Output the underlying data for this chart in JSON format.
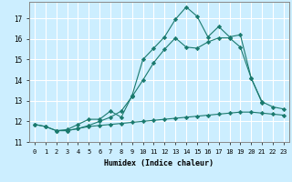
{
  "xlabel": "Humidex (Indice chaleur)",
  "background_color": "#cceeff",
  "line_color": "#1a7a6e",
  "grid_color": "#ffffff",
  "xlim": [
    -0.5,
    23.5
  ],
  "ylim": [
    11,
    17.8
  ],
  "xticks": [
    0,
    1,
    2,
    3,
    4,
    5,
    6,
    7,
    8,
    9,
    10,
    11,
    12,
    13,
    14,
    15,
    16,
    17,
    18,
    19,
    20,
    21,
    22,
    23
  ],
  "yticks": [
    11,
    12,
    13,
    14,
    15,
    16,
    17
  ],
  "line1_x": [
    0,
    1,
    2,
    3,
    4,
    5,
    6,
    7,
    8,
    9,
    10,
    11,
    12,
    13,
    14,
    15,
    16,
    17,
    18,
    19,
    20,
    21,
    22,
    23
  ],
  "line1_y": [
    11.85,
    11.75,
    11.55,
    11.55,
    11.65,
    11.75,
    11.8,
    11.85,
    11.9,
    11.95,
    12.0,
    12.05,
    12.1,
    12.15,
    12.2,
    12.25,
    12.3,
    12.35,
    12.4,
    12.45,
    12.45,
    12.4,
    12.35,
    12.3
  ],
  "line2_x": [
    0,
    1,
    2,
    3,
    4,
    5,
    6,
    7,
    8,
    9,
    10,
    11,
    12,
    13,
    14,
    15,
    16,
    17,
    18,
    19,
    20,
    21,
    22,
    23
  ],
  "line2_y": [
    11.85,
    11.75,
    11.55,
    11.55,
    11.65,
    11.8,
    12.0,
    12.2,
    12.5,
    13.2,
    14.0,
    14.85,
    15.5,
    16.05,
    15.6,
    15.55,
    15.85,
    16.05,
    16.05,
    15.6,
    14.1,
    12.95,
    12.7,
    12.6
  ],
  "line3_x": [
    2,
    3,
    4,
    5,
    6,
    7,
    8,
    9,
    10,
    11,
    12,
    13,
    14,
    15,
    16,
    17,
    18,
    19,
    20,
    21
  ],
  "line3_y": [
    11.55,
    11.6,
    11.85,
    12.1,
    12.1,
    12.5,
    12.2,
    13.25,
    15.0,
    15.55,
    16.1,
    16.95,
    17.55,
    17.1,
    16.1,
    16.6,
    16.1,
    16.2,
    14.1,
    12.9
  ]
}
